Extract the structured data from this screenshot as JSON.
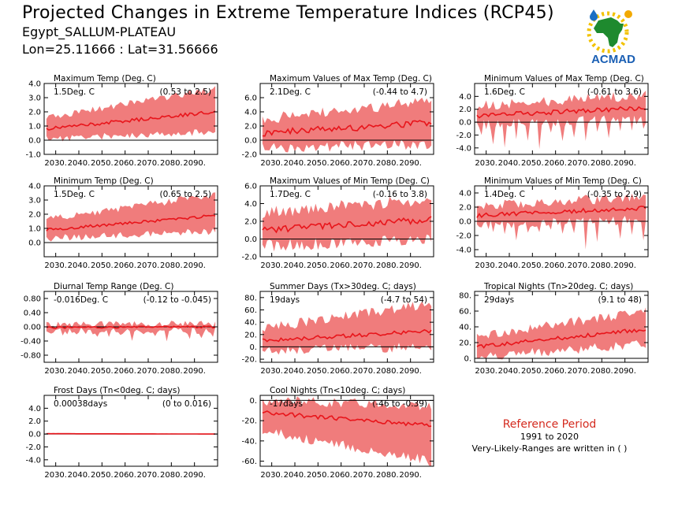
{
  "header": {
    "title": "Projected Changes in Extreme Temperature Indices (RCP45)",
    "station": "Egypt_SALLUM-PLATEAU",
    "coords": "Lon=25.11666 : Lat=31.56666"
  },
  "logo": {
    "text": "ACMAD"
  },
  "reference": {
    "title": "Reference Period",
    "years": "1991 to 2020",
    "note": "Very-Likely-Ranges are written in ( )"
  },
  "colors": {
    "band": "#f07c7c",
    "line": "#e8151b",
    "axis": "#000000"
  },
  "chart_data": [
    {
      "type": "area",
      "title": "Maximum Temp (Deg. C)",
      "change": "1.5Deg. C",
      "range": "(0.53 to 2.5)",
      "xlim": [
        2025,
        2100
      ],
      "ylim": [
        -1.0,
        4.0
      ],
      "yticks": [
        "4.0",
        "3.0",
        "2.0",
        "1.0",
        "0.0",
        "-1.0"
      ],
      "xticks": [
        "2030.",
        "2040.",
        "2050.",
        "2060.",
        "2070.",
        "2080.",
        "2090."
      ],
      "median_start": 0.8,
      "median_end": 2.0,
      "low_start": 0.1,
      "low_end": 0.6,
      "high_start": 1.6,
      "high_end": 3.6,
      "noise": 0.12,
      "bandNoise": 0.25
    },
    {
      "type": "area",
      "title": "Maximum Values of Max Temp (Deg. C)",
      "change": "2.1Deg. C",
      "range": "(-0.44 to 4.7)",
      "xlim": [
        2025,
        2100
      ],
      "ylim": [
        -2.0,
        8.0
      ],
      "yticks": [
        "6.0",
        "4.0",
        "2.0",
        "0.0",
        "-2.0"
      ],
      "xticks": [
        "2030.",
        "2040.",
        "2050.",
        "2060.",
        "2070.",
        "2080.",
        "2090."
      ],
      "median_start": 1.0,
      "median_end": 2.5,
      "low_start": -1.0,
      "low_end": -0.6,
      "high_start": 3.0,
      "high_end": 5.5,
      "noise": 0.5,
      "bandNoise": 0.8
    },
    {
      "type": "area",
      "title": "Minimum Values of Max Temp (Deg. C)",
      "change": "1.6Deg. C",
      "range": "(-0.61 to 3.6)",
      "xlim": [
        2025,
        2100
      ],
      "ylim": [
        -5.0,
        6.0
      ],
      "yticks": [
        "4.0",
        "2.0",
        "0.0",
        "-2.0",
        "-4.0"
      ],
      "xticks": [
        "2030.",
        "2040.",
        "2050.",
        "2060.",
        "2070.",
        "2080.",
        "2090."
      ],
      "median_start": 1.0,
      "median_end": 2.2,
      "low_start": -0.5,
      "low_end": 0.5,
      "high_start": 2.5,
      "high_end": 4.2,
      "noise": 0.35,
      "bandNoise": 0.8,
      "spikes": true
    },
    {
      "type": "area",
      "title": "Minimum Temp (Deg. C)",
      "change": "1.5Deg. C",
      "range": "(0.65 to 2.5)",
      "xlim": [
        2025,
        2100
      ],
      "ylim": [
        -1.0,
        4.0
      ],
      "yticks": [
        "4.0",
        "3.0",
        "2.0",
        "1.0",
        "0.0"
      ],
      "xticks": [
        "2030.",
        "2040.",
        "2050.",
        "2060.",
        "2070.",
        "2080.",
        "2090."
      ],
      "median_start": 0.9,
      "median_end": 1.9,
      "low_start": 0.3,
      "low_end": 0.8,
      "high_start": 1.6,
      "high_end": 3.4,
      "noise": 0.1,
      "bandNoise": 0.25
    },
    {
      "type": "area",
      "title": "Maximum Values of Min Temp (Deg. C)",
      "change": "1.7Deg. C",
      "range": "(-0.16 to 3.8)",
      "xlim": [
        2025,
        2100
      ],
      "ylim": [
        -2.0,
        6.0
      ],
      "yticks": [
        "6.0",
        "4.0",
        "2.0",
        "0.0",
        "-2.0"
      ],
      "xticks": [
        "2030.",
        "2040.",
        "2050.",
        "2060.",
        "2070.",
        "2080.",
        "2090."
      ],
      "median_start": 1.0,
      "median_end": 2.2,
      "low_start": -0.8,
      "low_end": 0.0,
      "high_start": 3.0,
      "high_end": 4.5,
      "noise": 0.35,
      "bandNoise": 0.7
    },
    {
      "type": "area",
      "title": "Minimum Values of Min Temp (Deg. C)",
      "change": "1.4Deg. C",
      "range": "(-0.35 to 2.9)",
      "xlim": [
        2025,
        2100
      ],
      "ylim": [
        -5.0,
        5.0
      ],
      "yticks": [
        "4.0",
        "2.0",
        "0.0",
        "-2.0",
        "-4.0"
      ],
      "xticks": [
        "2030.",
        "2040.",
        "2050.",
        "2060.",
        "2070.",
        "2080.",
        "2090."
      ],
      "median_start": 0.8,
      "median_end": 1.9,
      "low_start": -0.5,
      "low_end": 0.2,
      "high_start": 2.2,
      "high_end": 3.5,
      "noise": 0.3,
      "bandNoise": 0.7,
      "spikes": true
    },
    {
      "type": "area",
      "title": "Diurnal Temp Range (Deg. C)",
      "change": "-0.016Deg. C",
      "range": "(-0.12 to -0.045)",
      "xlim": [
        2025,
        2100
      ],
      "ylim": [
        -1.0,
        1.0
      ],
      "yticks": [
        "0.80",
        "0.40",
        "0.00",
        "-0.40",
        "-0.80"
      ],
      "xticks": [
        "2030.",
        "2040.",
        "2050.",
        "2060.",
        "2070.",
        "2080.",
        "2090."
      ],
      "median_start": -0.02,
      "median_end": 0.0,
      "low_start": -0.12,
      "low_end": -0.1,
      "high_start": 0.06,
      "high_end": 0.08,
      "noise": 0.03,
      "bandNoise": 0.1,
      "spikes": true
    },
    {
      "type": "area",
      "title": "Summer Days (Tx>30deg. C; days)",
      "change": "19days",
      "range": "(-4.7 to 54)",
      "xlim": [
        2025,
        2100
      ],
      "ylim": [
        -25,
        90
      ],
      "yticks": [
        "80.",
        "60.",
        "40.",
        "20.",
        "0.",
        "-20."
      ],
      "xticks": [
        "2030.",
        "2040.",
        "2050.",
        "2060.",
        "2070.",
        "2080.",
        "2090."
      ],
      "median_start": 10,
      "median_end": 26,
      "low_start": -5,
      "low_end": 0,
      "high_start": 30,
      "high_end": 70,
      "noise": 3,
      "bandNoise": 8
    },
    {
      "type": "area",
      "title": "Tropical Nights (Tn>20deg. C; days)",
      "change": "29days",
      "range": "(9.1 to 48)",
      "xlim": [
        2025,
        2100
      ],
      "ylim": [
        -5,
        85
      ],
      "yticks": [
        "80.",
        "60.",
        "40.",
        "20.",
        "0."
      ],
      "xticks": [
        "2030.",
        "2040.",
        "2050.",
        "2060.",
        "2070.",
        "2080.",
        "2090."
      ],
      "median_start": 15,
      "median_end": 37,
      "low_start": 2,
      "low_end": 18,
      "high_start": 28,
      "high_end": 60,
      "noise": 2.5,
      "bandNoise": 6
    },
    {
      "type": "area",
      "title": "Frost Days (Tn<0deg. C; days)",
      "change": "0.00038days",
      "range": "(0 to 0.016)",
      "xlim": [
        2025,
        2100
      ],
      "ylim": [
        -5.0,
        6.0
      ],
      "yticks": [
        "4.0",
        "2.0",
        "0.0",
        "-2.0",
        "-4.0"
      ],
      "xticks": [
        "2030.",
        "2040.",
        "2050.",
        "2060.",
        "2070.",
        "2080.",
        "2090."
      ],
      "median_start": 0.05,
      "median_end": 0.0,
      "low_start": 0.0,
      "low_end": 0.0,
      "high_start": 0.15,
      "high_end": 0.05,
      "noise": 0.0,
      "bandNoise": 0.02
    },
    {
      "type": "area",
      "title": "Cool Nights (Tn<10deg. C; days)",
      "change": "-17days",
      "range": "(-46 to -0.39)",
      "xlim": [
        2025,
        2100
      ],
      "ylim": [
        -65,
        5
      ],
      "yticks": [
        "0.",
        "-20.",
        "-40.",
        "-60."
      ],
      "xticks": [
        "2030.",
        "2040.",
        "2050.",
        "2060.",
        "2070.",
        "2080.",
        "2090."
      ],
      "median_start": -12,
      "median_end": -25,
      "low_start": -30,
      "low_end": -60,
      "high_start": 0,
      "high_end": -5,
      "noise": 2,
      "bandNoise": 5
    }
  ]
}
